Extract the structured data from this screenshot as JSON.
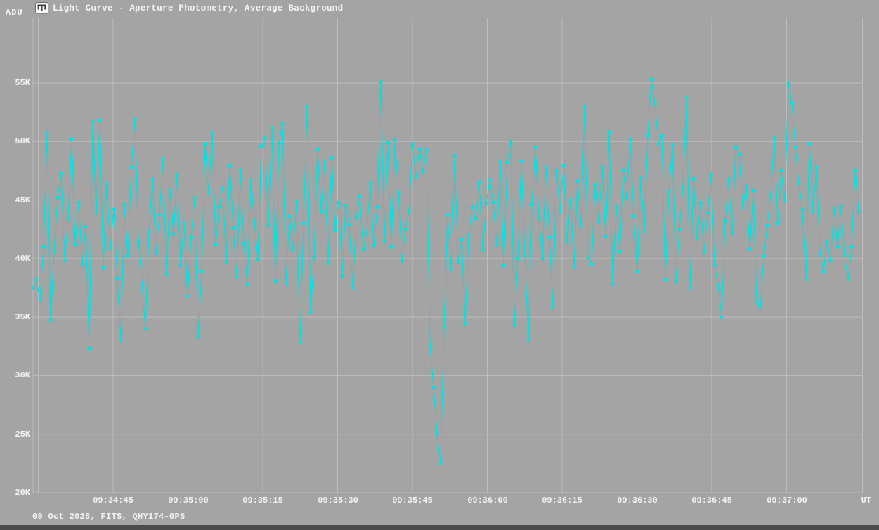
{
  "window": {
    "y_axis_unit": "ADU",
    "x_axis_unit": "UT",
    "title": "Light Curve - Aperture Photometry, Average Background",
    "footer": "09 Oct 2025, FITS, QHY174-GPS"
  },
  "colors": {
    "background": "#a4a4a4",
    "grid": "#bdbdbd",
    "curve": "#00e2e2",
    "text": "#f4f4f4",
    "bottom_strip": "#4c4c4c",
    "icon_glyph": "#3c3c3c",
    "icon_box": "#f8f8f8"
  },
  "chart_data": {
    "type": "line",
    "title": "Light Curve - Aperture Photometry, Average Background",
    "ylabel": "ADU",
    "xlabel": "UT",
    "grid": true,
    "point_marker": "square",
    "y_ticks": [
      "55K",
      "50K",
      "45K",
      "40K",
      "35K",
      "30K",
      "25K",
      "20K"
    ],
    "y_tick_values_kadu": [
      55,
      50,
      45,
      40,
      35,
      30,
      25,
      20
    ],
    "ylim_kadu": [
      20,
      60.6
    ],
    "x_ticks": [
      "09:34:45",
      "09:35:00",
      "09:35:15",
      "09:35:30",
      "09:35:45",
      "09:36:00",
      "09:36:15",
      "09:36:30",
      "09:36:45",
      "09:37:00"
    ],
    "x_tick_interval_sec": 15,
    "x_first_gridline_unlabeled_ut": "09:34:30",
    "xlim_ut": [
      "09:34:29",
      "09:37:15"
    ],
    "notable": {
      "occultation_min_kadu": 22.5,
      "occultation_min_time_ut": "09:35:50",
      "max_kadu": 55.3,
      "max_time_ut": "09:36:31"
    },
    "series": [
      {
        "name": "aperture-photometry-light-curve",
        "unit": "kADU",
        "start_ut": "09:34:29",
        "sample_interval_sec": 0.7,
        "values": [
          37.5,
          38.2,
          36.5,
          41.0,
          50.7,
          34.7,
          40.6,
          45.2,
          47.3,
          39.8,
          43.4,
          50.2,
          41.2,
          44.8,
          39.5,
          42.7,
          32.3,
          51.7,
          43.9,
          51.8,
          39.2,
          46.4,
          40.9,
          44.2,
          38.3,
          33.0,
          44.6,
          40.2,
          47.8,
          51.9,
          41.5,
          37.9,
          34.0,
          42.3,
          46.8,
          40.4,
          43.7,
          48.5,
          38.6,
          45.9,
          42.1,
          47.2,
          39.4,
          43.0,
          36.8,
          41.8,
          45.2,
          33.3,
          38.9,
          49.8,
          45.5,
          50.7,
          41.2,
          44.4,
          46.1,
          39.7,
          47.9,
          42.6,
          38.4,
          47.6,
          41.3,
          37.8,
          46.7,
          43.2,
          39.9,
          49.6,
          50.3,
          42.8,
          51.2,
          38.1,
          49.9,
          51.5,
          37.8,
          43.6,
          40.7,
          44.9,
          32.8,
          43.0,
          53.0,
          35.4,
          40.1,
          49.3,
          44.0,
          48.3,
          39.6,
          48.6,
          42.4,
          44.8,
          38.5,
          44.5,
          42.9,
          37.5,
          43.5,
          45.3,
          40.8,
          42.2,
          46.5,
          41.1,
          44.4,
          55.1,
          41.5,
          49.9,
          41.0,
          50.1,
          45.6,
          39.8,
          42.5,
          44.1,
          49.8,
          46.9,
          49.3,
          47.4,
          49.3,
          32.6,
          29.0,
          25.0,
          22.5,
          34.2,
          43.7,
          39.1,
          48.8,
          39.7,
          41.6,
          34.4,
          42.0,
          44.4,
          43.4,
          46.5,
          40.7,
          44.7,
          46.7,
          44.8,
          41.1,
          48.3,
          39.4,
          48.2,
          50.0,
          34.3,
          40.0,
          48.3,
          40.3,
          33.0,
          44.6,
          49.5,
          43.4,
          40.0,
          47.8,
          41.8,
          35.8,
          47.5,
          43.9,
          47.9,
          41.4,
          45.0,
          39.3,
          46.6,
          42.7,
          53.0,
          40.0,
          39.5,
          46.3,
          43.1,
          47.8,
          41.9,
          50.8,
          37.8,
          44.5,
          40.6,
          47.5,
          45.1,
          50.2,
          43.6,
          38.9,
          46.9,
          42.3,
          50.5,
          55.3,
          53.2,
          49.8,
          50.5,
          38.2,
          45.7,
          49.7,
          38.0,
          42.5,
          46.1,
          53.8,
          37.5,
          46.8,
          41.7,
          44.8,
          40.5,
          43.9,
          47.2,
          39.4,
          37.8,
          35.0,
          43.2,
          46.8,
          42.1,
          49.5,
          48.9,
          44.3,
          46.2,
          40.8,
          45.8,
          36.2,
          35.8,
          40.2,
          42.8,
          45.5,
          50.3,
          43.0,
          47.5,
          44.9,
          55.0,
          53.3,
          49.5,
          46.4,
          44.2,
          38.2,
          49.8,
          44.0,
          47.8,
          40.5,
          38.9,
          41.5,
          39.8,
          44.3,
          41.0,
          44.5,
          40.3,
          38.2,
          41.0,
          47.5,
          44.0
        ]
      }
    ]
  }
}
